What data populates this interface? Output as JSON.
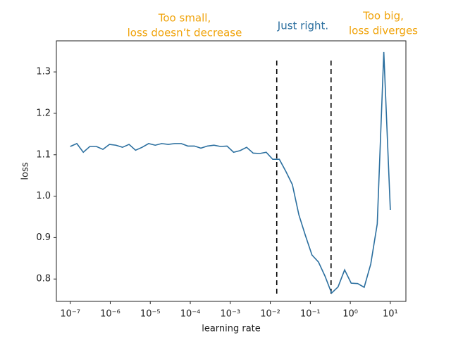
{
  "chart_data": {
    "type": "line",
    "xlabel": "learning rate",
    "ylabel": "loss",
    "xscale": "log",
    "xlim": [
      4.5e-08,
      24.5
    ],
    "ylim": [
      0.746,
      1.375
    ],
    "xticks": [
      {
        "value": 1e-07,
        "label": "10⁻⁷"
      },
      {
        "value": 1e-06,
        "label": "10⁻⁶"
      },
      {
        "value": 1e-05,
        "label": "10⁻⁵"
      },
      {
        "value": 0.0001,
        "label": "10⁻⁴"
      },
      {
        "value": 0.001,
        "label": "10⁻³"
      },
      {
        "value": 0.01,
        "label": "10⁻²"
      },
      {
        "value": 0.1,
        "label": "10⁻¹"
      },
      {
        "value": 1,
        "label": "10⁰"
      },
      {
        "value": 10,
        "label": "10¹"
      }
    ],
    "yticks": [
      0.8,
      0.9,
      {
        "value": 1.0,
        "label": "1.0"
      },
      1.1,
      1.2,
      1.3
    ],
    "x": [
      1e-07,
      1.46e-07,
      2.12e-07,
      3.09e-07,
      4.5e-07,
      6.55e-07,
      9.54e-07,
      1.39e-06,
      2.02e-06,
      2.95e-06,
      4.29e-06,
      6.25e-06,
      9.1e-06,
      1.33e-05,
      1.93e-05,
      2.81e-05,
      4.09e-05,
      5.96e-05,
      8.69e-05,
      0.000127,
      0.000184,
      0.000268,
      0.000391,
      0.000569,
      0.000829,
      0.00121,
      0.00176,
      0.00256,
      0.00373,
      0.00543,
      0.00791,
      0.0115,
      0.0168,
      0.0244,
      0.0356,
      0.0518,
      0.0755,
      0.11,
      0.16,
      0.233,
      0.34,
      0.494,
      0.72,
      1.05,
      1.53,
      2.22,
      3.24,
      4.71,
      6.87,
      10.0
    ],
    "series": [
      {
        "color": "#2b6f9f",
        "values": [
          1.12,
          1.127,
          1.106,
          1.12,
          1.12,
          1.113,
          1.125,
          1.123,
          1.118,
          1.125,
          1.111,
          1.118,
          1.127,
          1.123,
          1.127,
          1.125,
          1.127,
          1.127,
          1.121,
          1.121,
          1.116,
          1.121,
          1.123,
          1.12,
          1.121,
          1.106,
          1.11,
          1.118,
          1.104,
          1.103,
          1.106,
          1.089,
          1.089,
          1.06,
          1.028,
          0.955,
          0.905,
          0.858,
          0.841,
          0.807,
          0.766,
          0.781,
          0.822,
          0.79,
          0.789,
          0.78,
          0.836,
          0.933,
          1.348,
          0.967
        ]
      }
    ],
    "vlines": [
      0.0145,
      0.33
    ],
    "annotations": [
      {
        "lines": [
          "Too small,",
          "loss doesn’t decrease"
        ],
        "color": "#f0a30a"
      },
      {
        "lines": [
          "Just right."
        ],
        "color": "#2b6f9f"
      },
      {
        "lines": [
          "Too big,",
          "loss diverges"
        ],
        "color": "#f0a30a"
      }
    ]
  }
}
